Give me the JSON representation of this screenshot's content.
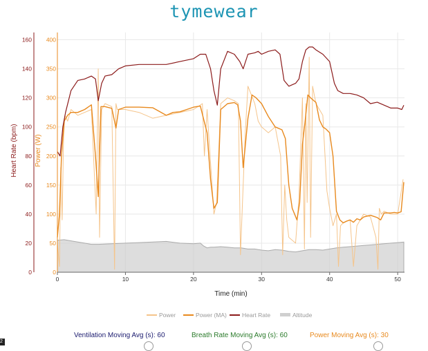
{
  "logo": "tymewear",
  "chart_data": {
    "type": "line",
    "xlabel": "Time (min)",
    "xlim": [
      0,
      51
    ],
    "x_ticks": [
      "0",
      "10",
      "20",
      "30",
      "40",
      "50"
    ],
    "hr_axis": {
      "label": "Heart Rate (bpm)",
      "ticks": [
        "0",
        "20",
        "40",
        "60",
        "80",
        "100",
        "120",
        "140",
        "160"
      ],
      "lim": [
        0,
        165
      ]
    },
    "power_axis": {
      "label": "Power (W)",
      "ticks": [
        "0",
        "50",
        "100",
        "150",
        "200",
        "250",
        "300",
        "350",
        "400"
      ],
      "lim": [
        0,
        412.5
      ]
    },
    "grid": true,
    "legend_position": "bottom",
    "colors": {
      "power": "#f5c48a",
      "power_ma": "#e8891d",
      "heart_rate": "#8b1a1a",
      "altitude": "#cfcfcf",
      "hr_axis": "#8b1a1a",
      "power_axis": "#e8891d"
    },
    "series": [
      {
        "name": "Power",
        "axis": "power",
        "x": [
          0,
          0.3,
          0.5,
          0.7,
          0.9,
          1.1,
          1.5,
          2,
          3,
          4,
          5,
          5.7,
          6.0,
          6.2,
          6.5,
          7,
          8,
          8.4,
          8.6,
          8.8,
          10,
          12,
          14,
          16,
          18,
          20,
          21.3,
          21.6,
          22,
          23,
          23.4,
          24,
          25,
          26,
          26.6,
          26.9,
          27.2,
          27.6,
          28,
          29,
          29.5,
          30,
          31,
          32,
          32.8,
          33.1,
          33.4,
          33.7,
          34,
          35,
          35.5,
          36,
          36.3,
          36.5,
          36.7,
          37,
          37.2,
          37.5,
          38,
          39,
          39.6,
          40,
          40.5,
          41,
          41.3,
          41.6,
          42,
          43,
          43.5,
          44,
          45,
          46,
          46.8,
          47.1,
          47.3,
          47.6,
          48,
          49,
          50,
          50.8
        ],
        "values": [
          50,
          10,
          180,
          90,
          230,
          270,
          260,
          280,
          270,
          275,
          280,
          100,
          350,
          60,
          280,
          290,
          285,
          5,
          290,
          280,
          280,
          275,
          265,
          270,
          275,
          280,
          290,
          200,
          280,
          100,
          120,
          290,
          300,
          295,
          290,
          30,
          120,
          240,
          320,
          290,
          260,
          250,
          240,
          250,
          200,
          30,
          150,
          90,
          60,
          50,
          130,
          300,
          40,
          290,
          120,
          370,
          60,
          320,
          290,
          270,
          140,
          110,
          80,
          100,
          10,
          80,
          85,
          90,
          10,
          80,
          100,
          95,
          60,
          5,
          110,
          100,
          105,
          100,
          100,
          160
        ]
      },
      {
        "name": "Power (MA)",
        "axis": "power",
        "x": [
          0,
          0.3,
          0.6,
          1,
          1.5,
          2,
          3,
          4,
          5,
          5.6,
          6.0,
          6.4,
          7,
          8,
          8.6,
          9,
          10,
          12,
          14,
          16,
          17,
          18,
          19,
          20,
          21,
          21.5,
          22,
          22.5,
          23,
          23.5,
          24,
          25,
          26,
          26.5,
          26.9,
          27.3,
          28,
          28.6,
          29.2,
          30,
          31,
          32,
          33,
          33.5,
          34,
          34.5,
          35.2,
          35.6,
          36,
          36.4,
          36.8,
          37.2,
          38,
          38.5,
          39,
          39.5,
          40,
          40.5,
          41,
          41.5,
          42,
          42.5,
          43,
          43.5,
          44,
          44.5,
          45,
          46,
          46.5,
          47,
          47.5,
          48,
          49,
          49.5,
          50,
          50.5,
          50.9
        ],
        "values": [
          60,
          100,
          200,
          260,
          270,
          275,
          275,
          280,
          288,
          200,
          130,
          285,
          285,
          282,
          248,
          280,
          284,
          284,
          283,
          270,
          275,
          276,
          280,
          284,
          286,
          263,
          240,
          160,
          110,
          120,
          280,
          290,
          292,
          288,
          260,
          180,
          265,
          305,
          300,
          290,
          268,
          250,
          245,
          230,
          150,
          110,
          90,
          120,
          220,
          260,
          305,
          300,
          292,
          262,
          250,
          246,
          240,
          200,
          105,
          90,
          85,
          88,
          90,
          86,
          92,
          90,
          95,
          98,
          96,
          94,
          90,
          102,
          102,
          103,
          102,
          104,
          155
        ]
      },
      {
        "name": "Heart Rate",
        "axis": "hr",
        "x": [
          0,
          0.4,
          0.8,
          1.2,
          2,
          3,
          4,
          5,
          5.6,
          6.0,
          6.5,
          7,
          8,
          9,
          10,
          12,
          14,
          16,
          18,
          20,
          21,
          21.8,
          22.5,
          23,
          23.5,
          24,
          25,
          26,
          26.8,
          27.3,
          28,
          29,
          29.5,
          30,
          31,
          32,
          32.7,
          33.3,
          34,
          35,
          35.5,
          36,
          36.5,
          37,
          37.5,
          38,
          39,
          40,
          40.7,
          41.2,
          42,
          43,
          44,
          45,
          46,
          47,
          48,
          49,
          50,
          50.6,
          50.9
        ],
        "values": [
          83,
          80,
          100,
          110,
          125,
          132,
          133,
          135,
          133,
          118,
          130,
          135,
          136,
          140,
          142,
          143,
          143,
          143,
          145,
          147,
          150,
          150,
          140,
          125,
          115,
          140,
          152,
          150,
          145,
          140,
          150,
          151,
          152,
          150,
          152,
          153,
          150,
          132,
          128,
          130,
          133,
          145,
          153,
          155,
          155,
          153,
          150,
          145,
          130,
          125,
          123,
          123,
          122,
          120,
          116,
          117,
          115,
          113,
          113,
          112,
          115
        ]
      },
      {
        "name": "Altitude",
        "axis": "power",
        "type": "area",
        "x": [
          0,
          1,
          2,
          3,
          4,
          5,
          6,
          8,
          10,
          12,
          14,
          16,
          18,
          20,
          21,
          21.5,
          22,
          22.5,
          23,
          24,
          25,
          26,
          27,
          28,
          29,
          30,
          31,
          32,
          33,
          34,
          35,
          36,
          37,
          38,
          39,
          40,
          41,
          42,
          43,
          44,
          45,
          46,
          47,
          48,
          49,
          50,
          50.9
        ],
        "values": [
          55,
          56,
          54,
          52,
          50,
          48,
          48,
          49,
          50,
          51,
          52,
          53,
          50,
          49,
          50,
          45,
          42,
          43,
          43,
          44,
          43,
          42,
          42,
          40,
          40,
          38,
          37,
          39,
          38,
          36,
          35,
          37,
          39,
          39,
          38,
          40,
          42,
          43,
          44,
          45,
          46,
          47,
          48,
          49,
          50,
          51,
          52
        ]
      }
    ]
  },
  "footer": {
    "ventilation": "Ventilation Moving Avg (s): 60",
    "breath_rate": "Breath Rate Moving Avg (s): 60",
    "power": "Power Moving Avg (s): 30"
  },
  "corner_badge": "2"
}
